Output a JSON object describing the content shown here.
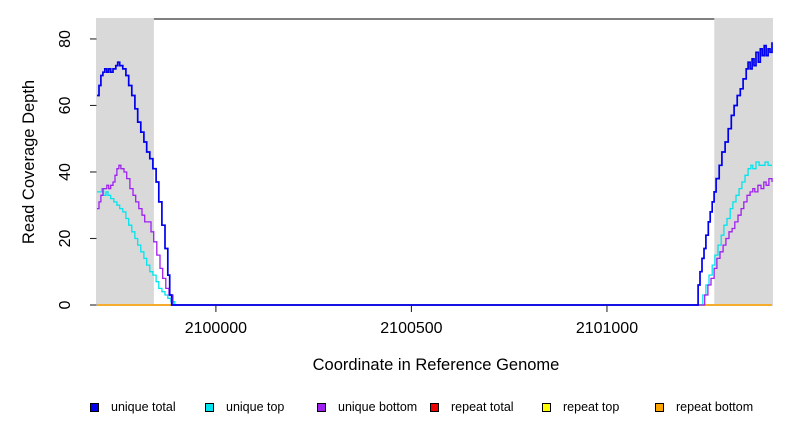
{
  "chart_data": {
    "type": "line",
    "title": "",
    "xlabel": "Coordinate in Reference Genome",
    "ylabel": "Read Coverage Depth",
    "xlim": [
      2099696,
      2101422
    ],
    "ylim": [
      0,
      86
    ],
    "x_ticks": [
      2100000,
      2100500,
      2101000
    ],
    "y_ticks": [
      0,
      20,
      40,
      60,
      80
    ],
    "grid": false,
    "legend_position": "bottom",
    "box_color": "#2b2b2b",
    "shaded_regions": [
      {
        "x0": 2099696,
        "x1": 2099839,
        "color": "#D9D9D9"
      },
      {
        "x0": 2101277,
        "x1": 2101422,
        "color": "#D9D9D9"
      }
    ],
    "series": [
      {
        "name": "unique total",
        "color": "#0000EE",
        "points": [
          [
            2099696,
            63
          ],
          [
            2099701,
            66
          ],
          [
            2099706,
            69
          ],
          [
            2099711,
            70
          ],
          [
            2099716,
            71
          ],
          [
            2099721,
            70
          ],
          [
            2099726,
            71
          ],
          [
            2099731,
            70
          ],
          [
            2099737,
            71
          ],
          [
            2099744,
            72
          ],
          [
            2099749,
            73
          ],
          [
            2099754,
            72
          ],
          [
            2099762,
            71
          ],
          [
            2099770,
            69
          ],
          [
            2099777,
            66
          ],
          [
            2099785,
            63
          ],
          [
            2099793,
            59
          ],
          [
            2099800,
            55
          ],
          [
            2099808,
            52
          ],
          [
            2099816,
            49
          ],
          [
            2099823,
            46
          ],
          [
            2099831,
            44
          ],
          [
            2099839,
            41
          ],
          [
            2099847,
            37
          ],
          [
            2099854,
            31
          ],
          [
            2099862,
            24
          ],
          [
            2099870,
            17
          ],
          [
            2099877,
            9
          ],
          [
            2099882,
            3
          ],
          [
            2099887,
            0
          ],
          [
            2101230,
            0
          ],
          [
            2101233,
            6
          ],
          [
            2101238,
            10
          ],
          [
            2101243,
            14
          ],
          [
            2101248,
            17
          ],
          [
            2101253,
            21
          ],
          [
            2101259,
            25
          ],
          [
            2101264,
            28
          ],
          [
            2101269,
            31
          ],
          [
            2101274,
            34
          ],
          [
            2101279,
            38
          ],
          [
            2101287,
            42
          ],
          [
            2101294,
            46
          ],
          [
            2101302,
            49
          ],
          [
            2101310,
            53
          ],
          [
            2101318,
            57
          ],
          [
            2101325,
            60
          ],
          [
            2101333,
            63
          ],
          [
            2101341,
            65
          ],
          [
            2101348,
            68
          ],
          [
            2101356,
            71
          ],
          [
            2101361,
            73
          ],
          [
            2101366,
            71
          ],
          [
            2101371,
            74
          ],
          [
            2101376,
            72
          ],
          [
            2101381,
            76
          ],
          [
            2101387,
            73
          ],
          [
            2101392,
            77
          ],
          [
            2101397,
            75
          ],
          [
            2101402,
            78
          ],
          [
            2101407,
            75
          ],
          [
            2101412,
            77
          ],
          [
            2101417,
            76
          ],
          [
            2101422,
            79
          ]
        ]
      },
      {
        "name": "unique top",
        "color": "#00E5EE",
        "points": [
          [
            2099696,
            34
          ],
          [
            2099703,
            34
          ],
          [
            2099708,
            35
          ],
          [
            2099713,
            33
          ],
          [
            2099719,
            34
          ],
          [
            2099724,
            33
          ],
          [
            2099731,
            32
          ],
          [
            2099739,
            31
          ],
          [
            2099747,
            30
          ],
          [
            2099754,
            29
          ],
          [
            2099762,
            28
          ],
          [
            2099770,
            26
          ],
          [
            2099777,
            24
          ],
          [
            2099785,
            22
          ],
          [
            2099793,
            20
          ],
          [
            2099800,
            18
          ],
          [
            2099808,
            16
          ],
          [
            2099816,
            14
          ],
          [
            2099823,
            12
          ],
          [
            2099831,
            10
          ],
          [
            2099839,
            9
          ],
          [
            2099847,
            7
          ],
          [
            2099854,
            5
          ],
          [
            2099862,
            4
          ],
          [
            2099870,
            3
          ],
          [
            2099877,
            2
          ],
          [
            2099885,
            1
          ],
          [
            2099895,
            0
          ],
          [
            2101238,
            0
          ],
          [
            2101245,
            3
          ],
          [
            2101253,
            6
          ],
          [
            2101261,
            9
          ],
          [
            2101269,
            12
          ],
          [
            2101276,
            15
          ],
          [
            2101284,
            18
          ],
          [
            2101292,
            21
          ],
          [
            2101299,
            24
          ],
          [
            2101307,
            26
          ],
          [
            2101315,
            29
          ],
          [
            2101322,
            31
          ],
          [
            2101330,
            33
          ],
          [
            2101338,
            35
          ],
          [
            2101345,
            37
          ],
          [
            2101353,
            39
          ],
          [
            2101361,
            41
          ],
          [
            2101368,
            42
          ],
          [
            2101373,
            41
          ],
          [
            2101381,
            43
          ],
          [
            2101389,
            42
          ],
          [
            2101397,
            42
          ],
          [
            2101404,
            43
          ],
          [
            2101412,
            42
          ],
          [
            2101422,
            42
          ]
        ]
      },
      {
        "name": "unique bottom",
        "color": "#A020F0",
        "points": [
          [
            2099696,
            29
          ],
          [
            2099701,
            31
          ],
          [
            2099706,
            33
          ],
          [
            2099711,
            35
          ],
          [
            2099716,
            35
          ],
          [
            2099721,
            36
          ],
          [
            2099726,
            35
          ],
          [
            2099731,
            36
          ],
          [
            2099737,
            37
          ],
          [
            2099742,
            39
          ],
          [
            2099747,
            41
          ],
          [
            2099752,
            42
          ],
          [
            2099757,
            41
          ],
          [
            2099765,
            40
          ],
          [
            2099772,
            38
          ],
          [
            2099780,
            35
          ],
          [
            2099788,
            33
          ],
          [
            2099795,
            31
          ],
          [
            2099803,
            29
          ],
          [
            2099811,
            27
          ],
          [
            2099818,
            25
          ],
          [
            2099826,
            25
          ],
          [
            2099834,
            22
          ],
          [
            2099841,
            19
          ],
          [
            2099849,
            15
          ],
          [
            2099857,
            11
          ],
          [
            2099864,
            8
          ],
          [
            2099872,
            5
          ],
          [
            2099880,
            3
          ],
          [
            2099890,
            0
          ],
          [
            2101243,
            0
          ],
          [
            2101250,
            3
          ],
          [
            2101258,
            6
          ],
          [
            2101266,
            8
          ],
          [
            2101274,
            11
          ],
          [
            2101281,
            14
          ],
          [
            2101289,
            16
          ],
          [
            2101297,
            18
          ],
          [
            2101304,
            20
          ],
          [
            2101312,
            22
          ],
          [
            2101320,
            23
          ],
          [
            2101327,
            25
          ],
          [
            2101335,
            27
          ],
          [
            2101343,
            29
          ],
          [
            2101350,
            31
          ],
          [
            2101358,
            33
          ],
          [
            2101366,
            34
          ],
          [
            2101373,
            35
          ],
          [
            2101378,
            34
          ],
          [
            2101386,
            36
          ],
          [
            2101394,
            35
          ],
          [
            2101401,
            37
          ],
          [
            2101407,
            36
          ],
          [
            2101414,
            38
          ],
          [
            2101422,
            37
          ]
        ]
      },
      {
        "name": "repeat total",
        "color": "#EE0000",
        "points": [
          [
            2099696,
            0
          ],
          [
            2101422,
            0
          ]
        ]
      },
      {
        "name": "repeat top",
        "color": "#FFFF00",
        "points": [
          [
            2099696,
            0
          ],
          [
            2101422,
            0
          ]
        ]
      },
      {
        "name": "repeat bottom",
        "color": "#FFA500",
        "points": [
          [
            2099696,
            0
          ],
          [
            2101422,
            0
          ]
        ]
      }
    ]
  }
}
